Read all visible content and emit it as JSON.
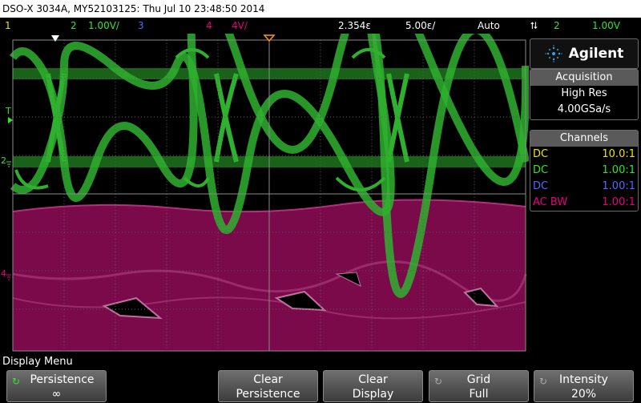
{
  "title": "DSO-X 3034A, MY52103125: Thu Jul 10 23:48:50 2014",
  "status": {
    "ch1_label": "1",
    "ch2_label": "2",
    "ch2_scale": "1.00V/",
    "ch3_label": "3",
    "ch4_label": "4",
    "ch4_scale": "4V/",
    "time_delay": "2.354ε",
    "time_scale": "5.00ε/",
    "trigger_mode": "Auto",
    "trigger_icon": "trigger-arrows-icon",
    "trigger_source": "2",
    "trigger_level": "1.00V"
  },
  "markers": {
    "trigger": "T",
    "ch2": "2",
    "ch4": "4"
  },
  "brand": {
    "name": "Agilent",
    "logo_icon": "agilent-spark-icon"
  },
  "acquisition": {
    "title": "Acquisition",
    "mode": "High Res",
    "rate": "4.00GSa/s"
  },
  "channels": {
    "title": "Channels",
    "rows": [
      {
        "coupling": "DC",
        "probe": "10.0:1",
        "color": "#e6e600"
      },
      {
        "coupling": "DC",
        "probe": "1.00:1",
        "color": "#2fe62f"
      },
      {
        "coupling": "DC",
        "probe": "1.00:1",
        "color": "#4d6bff"
      },
      {
        "coupling": "AC BW",
        "probe": "1.00:1",
        "color": "#e60080"
      }
    ]
  },
  "menu": {
    "title": "Display Menu",
    "persistence_label": "Persistence",
    "persistence_value": "∞",
    "clear_persistence_1": "Clear",
    "clear_persistence_2": "Persistence",
    "clear_display_1": "Clear",
    "clear_display_2": "Display",
    "grid_label": "Grid",
    "grid_value": "Full",
    "intensity_label": "Intensity",
    "intensity_value": "20%"
  },
  "colors": {
    "ch2_trace": "#2fb02f",
    "ch4_trace": "#7a0a4a",
    "grid": "#5a5a5a"
  }
}
